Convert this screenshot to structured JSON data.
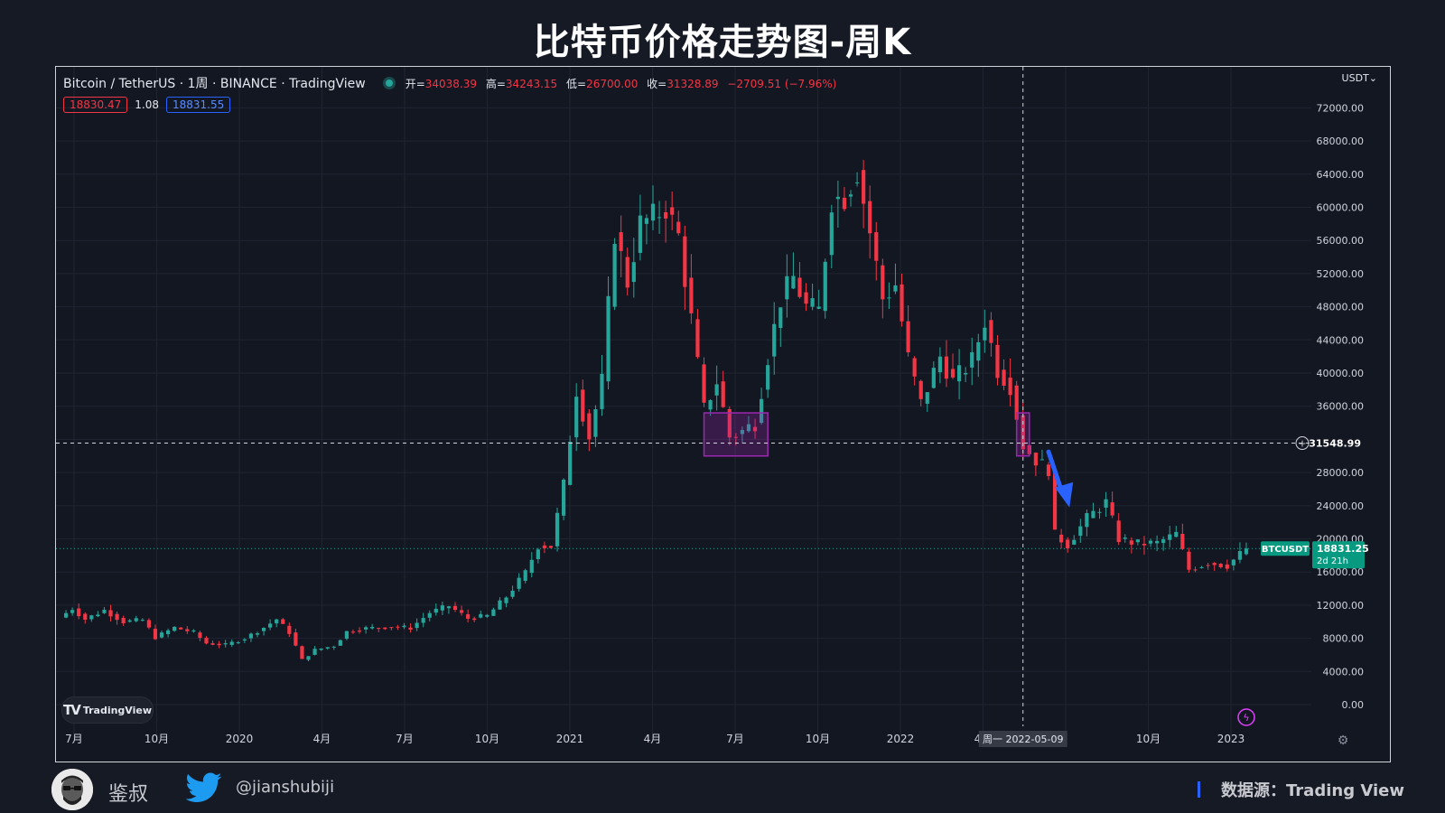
{
  "page": {
    "title": "比特币价格走势图-周K"
  },
  "header": {
    "symbol": "Bitcoin / TetherUS · 1周 · BINANCE · TradingView",
    "ohlc": [
      {
        "label": "开=",
        "value": "34038.39"
      },
      {
        "label": "高=",
        "value": "34243.15"
      },
      {
        "label": "低=",
        "value": "26700.00"
      },
      {
        "label": "收=",
        "value": "31328.89"
      }
    ],
    "change": "−2709.51 (−7.96%)",
    "sell_price": "18830.47",
    "spread": "1.08",
    "buy_price": "18831.55",
    "currency": "USDT"
  },
  "chart_data": {
    "type": "candlestick",
    "interval": "1周",
    "exchange": "BINANCE",
    "ylim": [
      0,
      72000
    ],
    "y_ticks": [
      0,
      4000,
      8000,
      12000,
      16000,
      20000,
      24000,
      28000,
      32000,
      36000,
      40000,
      44000,
      48000,
      52000,
      56000,
      60000,
      64000,
      68000,
      72000
    ],
    "y_tick_labels": [
      "0.00",
      "4000.00",
      "8000.00",
      "12000.00",
      "16000.00",
      "20000.00",
      "24000.00",
      "28000.00",
      "32000.00",
      "36000.00",
      "40000.00",
      "44000.00",
      "48000.00",
      "52000.00",
      "56000.00",
      "60000.00",
      "64000.00",
      "68000.00",
      "72000.00"
    ],
    "x_tick_labels": [
      "7月",
      "10月",
      "2020",
      "4月",
      "7月",
      "10月",
      "2021",
      "4月",
      "7月",
      "10月",
      "2022",
      "4月",
      "7月",
      "10月",
      "2023"
    ],
    "x_range": [
      "2019-06-17",
      "2023-01-09"
    ],
    "price_series": [
      [
        "2019-06-17",
        10500
      ],
      [
        "2019-07-01",
        11600
      ],
      [
        "2019-07-15",
        10300
      ],
      [
        "2019-08-05",
        11400
      ],
      [
        "2019-08-26",
        10000
      ],
      [
        "2019-09-16",
        10200
      ],
      [
        "2019-09-30",
        8100
      ],
      [
        "2019-10-21",
        9300
      ],
      [
        "2019-11-11",
        8700
      ],
      [
        "2019-11-25",
        7400
      ],
      [
        "2019-12-16",
        7200
      ],
      [
        "2020-01-06",
        8000
      ],
      [
        "2020-01-27",
        9300
      ],
      [
        "2020-02-10",
        10300
      ],
      [
        "2020-02-24",
        8700
      ],
      [
        "2020-03-09",
        5400
      ],
      [
        "2020-03-23",
        6600
      ],
      [
        "2020-04-13",
        7100
      ],
      [
        "2020-04-27",
        8800
      ],
      [
        "2020-05-18",
        9200
      ],
      [
        "2020-06-15",
        9400
      ],
      [
        "2020-07-06",
        9250
      ],
      [
        "2020-07-27",
        11100
      ],
      [
        "2020-08-17",
        11900
      ],
      [
        "2020-09-07",
        10400
      ],
      [
        "2020-09-28",
        10700
      ],
      [
        "2020-10-19",
        13000
      ],
      [
        "2020-11-09",
        15900
      ],
      [
        "2020-11-23",
        19200
      ],
      [
        "2020-12-07",
        19100
      ],
      [
        "2020-12-21",
        26500
      ],
      [
        "2021-01-04",
        38000
      ],
      [
        "2021-01-18",
        32300
      ],
      [
        "2021-02-01",
        39000
      ],
      [
        "2021-02-15",
        57000
      ],
      [
        "2021-03-01",
        51000
      ],
      [
        "2021-03-15",
        58000
      ],
      [
        "2021-03-29",
        58800
      ],
      [
        "2021-04-12",
        60000
      ],
      [
        "2021-04-26",
        56500
      ],
      [
        "2021-05-10",
        46500
      ],
      [
        "2021-05-24",
        35600
      ],
      [
        "2021-06-07",
        39000
      ],
      [
        "2021-06-21",
        32300
      ],
      [
        "2021-07-05",
        33000
      ],
      [
        "2021-07-19",
        34000
      ],
      [
        "2021-08-02",
        42000
      ],
      [
        "2021-08-16",
        48900
      ],
      [
        "2021-08-30",
        51500
      ],
      [
        "2021-09-13",
        48000
      ],
      [
        "2021-09-27",
        47500
      ],
      [
        "2021-10-11",
        61000
      ],
      [
        "2021-10-25",
        61300
      ],
      [
        "2021-11-08",
        64500
      ],
      [
        "2021-11-22",
        57000
      ],
      [
        "2021-12-06",
        49000
      ],
      [
        "2021-12-20",
        50700
      ],
      [
        "2022-01-03",
        41800
      ],
      [
        "2022-01-17",
        36300
      ],
      [
        "2022-02-07",
        42000
      ],
      [
        "2022-02-21",
        39000
      ],
      [
        "2022-03-14",
        41500
      ],
      [
        "2022-03-28",
        46400
      ],
      [
        "2022-04-11",
        40400
      ],
      [
        "2022-04-25",
        38500
      ],
      [
        "2022-05-09",
        31300
      ],
      [
        "2022-05-23",
        29500
      ],
      [
        "2022-06-06",
        28400
      ],
      [
        "2022-06-13",
        20500
      ],
      [
        "2022-06-27",
        19300
      ],
      [
        "2022-07-18",
        22500
      ],
      [
        "2022-08-08",
        24400
      ],
      [
        "2022-08-22",
        20000
      ],
      [
        "2022-09-12",
        19400
      ],
      [
        "2022-10-03",
        19500
      ],
      [
        "2022-10-24",
        20600
      ],
      [
        "2022-11-07",
        16300
      ],
      [
        "2022-11-28",
        17100
      ],
      [
        "2022-12-19",
        16800
      ],
      [
        "2023-01-09",
        18831
      ]
    ],
    "crosshair": {
      "date_label": "周一 2022-05-09",
      "price": "31548.99"
    },
    "last_price": {
      "symbol": "BTCUSDT",
      "price": "18831.25",
      "countdown": "2d 21h"
    },
    "annotations": [
      {
        "type": "box",
        "color": "#9c27b0",
        "from": "2021-05-24",
        "to": "2021-08-02",
        "low": 30000,
        "high": 35200
      },
      {
        "type": "box",
        "color": "#9c27b0",
        "from": "2022-05-02",
        "to": "2022-05-16",
        "low": 30000,
        "high": 35200
      },
      {
        "type": "arrow",
        "color": "#2962ff",
        "from": [
          "2022-06-06",
          30500
        ],
        "to": [
          "2022-06-27",
          24000
        ]
      }
    ]
  },
  "watermark": {
    "logo_text": "TradingView"
  },
  "footer": {
    "author": "鉴叔",
    "handle": "@jianshubiji",
    "source": "数据源：Trading View"
  }
}
